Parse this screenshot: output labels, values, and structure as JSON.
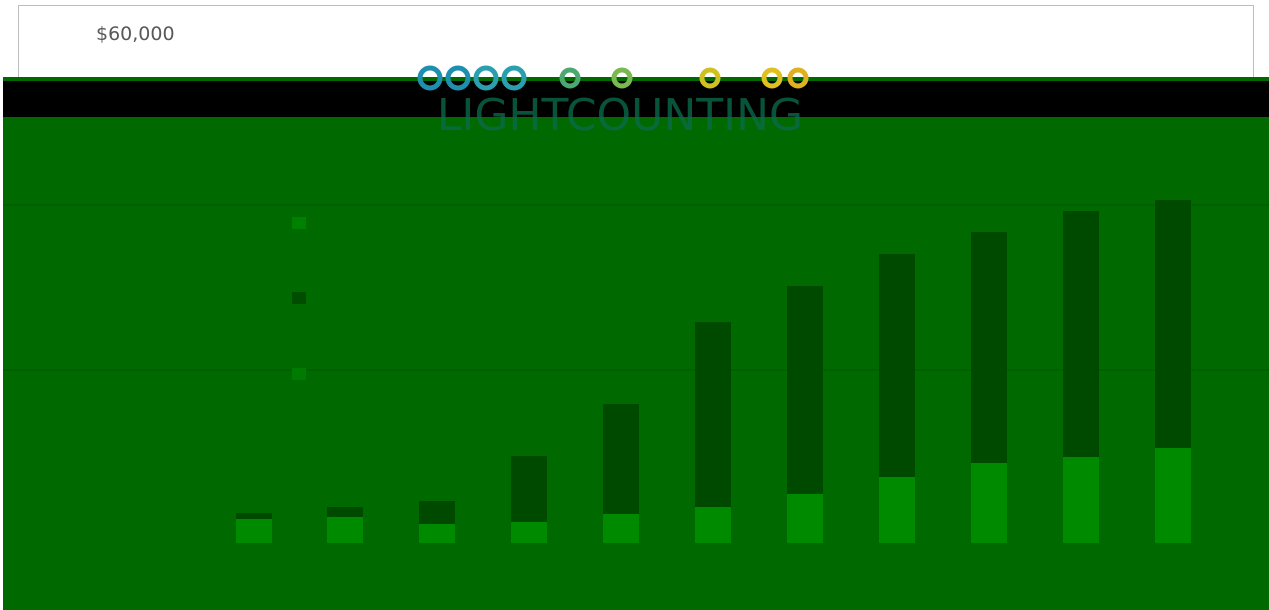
{
  "axis_label": "$60,000",
  "logo": "LIGHTCOUNTING"
}
